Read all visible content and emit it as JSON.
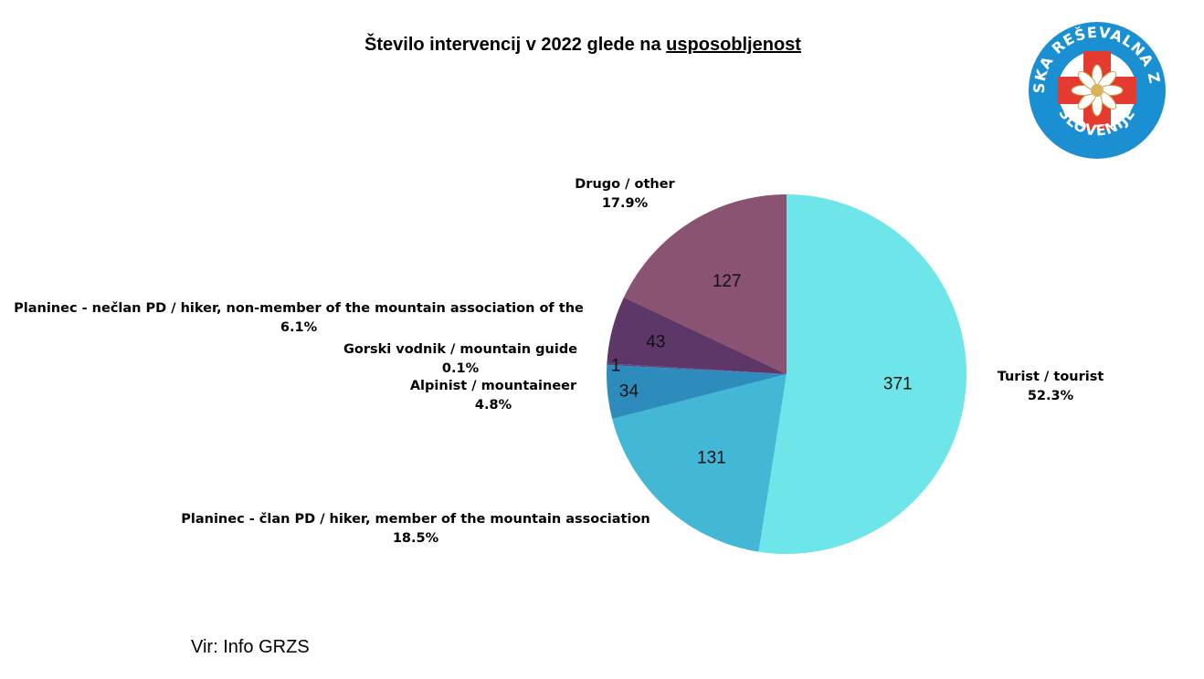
{
  "title": {
    "prefix": "Število intervencij v 2022 glede na ",
    "underlined": "usposobljenost"
  },
  "source": "Vir: Info GRZS",
  "logo": {
    "top_text": "GORSKA REŠEVALNA ZVEZA",
    "bottom_text": "SLOVENIJE",
    "colors": {
      "ring": "#1a8fd1",
      "cross": "#e53a2f",
      "flower": "#ffffff"
    }
  },
  "chart_data": {
    "type": "pie",
    "title": "Število intervencij v 2022 glede na usposobljenost",
    "start": "12 o'clock",
    "direction": "clockwise",
    "slices": [
      {
        "label": "Turist / tourist",
        "value": 371,
        "percent": "52.3%",
        "color": "#6ee6e9"
      },
      {
        "label": "Planinec - član PD / hiker, member of the mountain association",
        "value": 131,
        "percent": "18.5%",
        "color": "#43b8d6"
      },
      {
        "label": "Alpinist / mountaineer",
        "value": 34,
        "percent": "4.8%",
        "color": "#2e8cbc"
      },
      {
        "label": "Gorski vodnik / mountain guide",
        "value": 1,
        "percent": "0.1%",
        "color": "#4a4f8e"
      },
      {
        "label": "Planinec - nečlan PD / hiker, non-member of the mountain association of the",
        "value": 43,
        "percent": "6.1%",
        "color": "#5c3768"
      },
      {
        "label": "Drugo / other",
        "value": 127,
        "percent": "17.9%",
        "color": "#8a5372"
      }
    ]
  }
}
